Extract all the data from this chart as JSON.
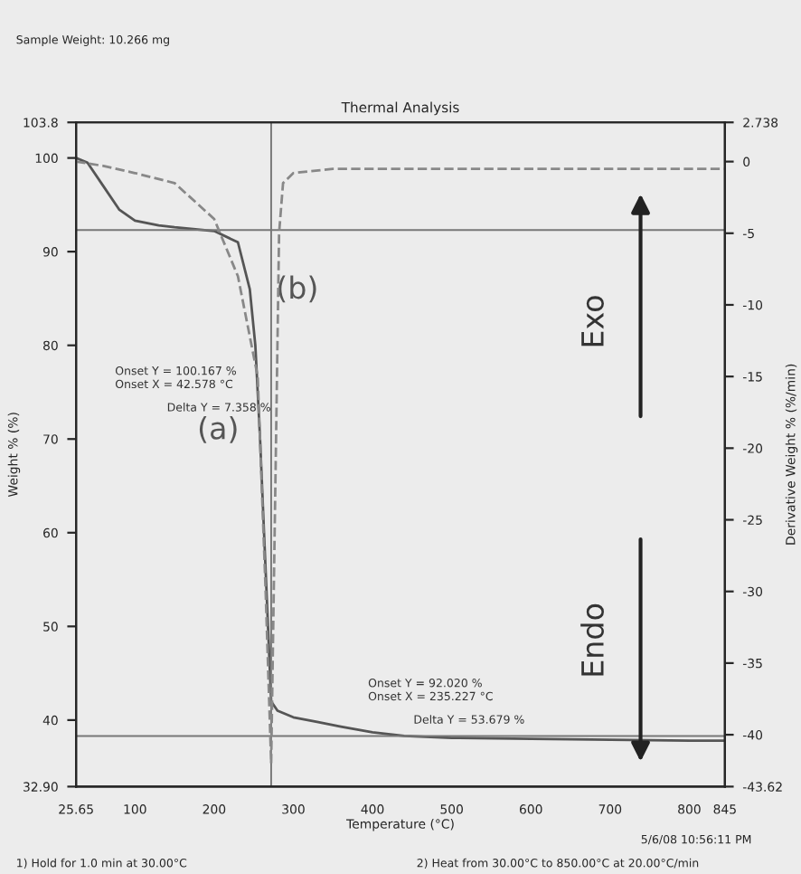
{
  "chart_data": {
    "type": "line",
    "title": "Thermal Analysis",
    "xlabel": "Temperature (°C)",
    "ylabel": "Weight % (%)",
    "y2label": "Derivative Weight % (%/min)",
    "series": [
      {
        "name": "(a)",
        "color": "#555555",
        "line_style": "solid",
        "x": [
          25.65,
          40,
          60,
          80,
          100,
          130,
          150,
          200,
          230,
          245,
          252,
          258,
          263,
          268,
          272,
          280,
          300,
          330,
          360,
          400,
          440,
          500,
          600,
          700,
          800,
          845
        ],
        "values": [
          100,
          99.5,
          97,
          94.5,
          93.3,
          92.8,
          92.6,
          92.2,
          91,
          86,
          80,
          70,
          60,
          50,
          42,
          41,
          40.3,
          39.8,
          39.3,
          38.7,
          38.3,
          38.1,
          38,
          37.9,
          37.8,
          37.8
        ]
      },
      {
        "name": "(b)",
        "color": "#888888",
        "line_style": "dashed",
        "axis": "y2",
        "x": [
          25.65,
          60,
          100,
          150,
          200,
          230,
          255,
          265,
          272,
          278,
          282,
          287,
          300,
          350,
          450,
          600,
          845
        ],
        "values": [
          0,
          -0.3,
          -0.8,
          -1.5,
          -4,
          -8,
          -15,
          -30,
          -42,
          -20,
          -5,
          -1.5,
          -0.8,
          -0.5,
          -0.5,
          -0.5,
          -0.5
        ]
      }
    ],
    "xlim": [
      25.65,
      845
    ],
    "xticks": [
      {
        "value": 25.65,
        "label": "25.65"
      },
      100,
      200,
      300,
      400,
      500,
      600,
      700,
      800,
      {
        "value": 845,
        "label": "845"
      }
    ],
    "ylim": [
      32.9,
      103.8
    ],
    "yticks": [
      {
        "value": 32.9,
        "label": "32.90"
      },
      40,
      50,
      60,
      70,
      80,
      90,
      100,
      {
        "value": 103.8,
        "label": "103.8"
      }
    ],
    "y2lim": [
      -43.62,
      2.738
    ],
    "y2ticks": [
      {
        "value": -43.62,
        "label": "-43.62"
      },
      -40,
      -35,
      -30,
      -25,
      -20,
      -15,
      -10,
      -5,
      0,
      {
        "value": 2.738,
        "label": "2.738"
      }
    ],
    "ref_lines": [
      {
        "axis": "y",
        "value": 92.3,
        "color": "#777777"
      },
      {
        "axis": "y",
        "value": 38.3,
        "color": "#777777"
      },
      {
        "axis": "x",
        "value": 272,
        "color": "#777777"
      }
    ],
    "grid": false,
    "legend": false,
    "annotations": [
      "Onset Y = 100.167 %",
      "Onset X = 42.578 °C",
      "Delta Y = 7.358 %",
      "Onset Y = 92.020 %",
      "Onset X = 235.227 °C",
      "Delta Y = 53.679 %",
      "Exo",
      "Endo",
      "Sample Weight: 10.266 mg",
      "5/6/08 10:56:11 PM",
      "1) Hold for 1.0 min at 30.00°C",
      "2) Heat from 30.00°C to 850.00°C at 20.00°C/min"
    ]
  }
}
